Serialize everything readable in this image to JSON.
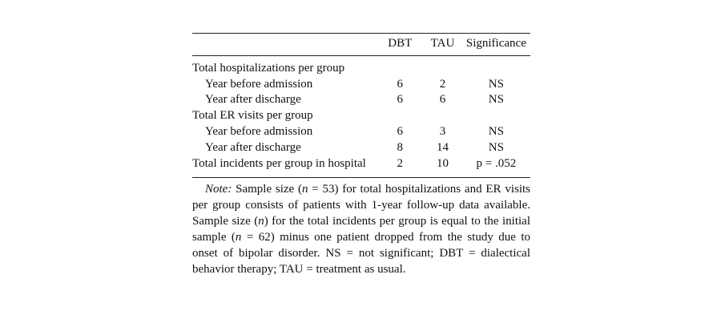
{
  "table": {
    "columns": [
      "DBT",
      "TAU",
      "Significance"
    ],
    "rows": [
      {
        "label": "Total hospitalizations per group"
      },
      {
        "label": "Year before admission",
        "dbt": 6,
        "tau": 2,
        "sig": "NS"
      },
      {
        "label": "Year after discharge",
        "dbt": 6,
        "tau": 6,
        "sig": "NS"
      },
      {
        "label": "Total ER visits per group"
      },
      {
        "label": "Year before admission",
        "dbt": 6,
        "tau": 3,
        "sig": "NS"
      },
      {
        "label": "Year after discharge",
        "dbt": 8,
        "tau": 14,
        "sig": "NS"
      },
      {
        "label": "Total incidents per group in hospital",
        "dbt": 2,
        "tau": 10,
        "sig": "p = .052"
      }
    ]
  },
  "note": {
    "parts": [
      "Note:",
      " Sample size (",
      "n",
      " = 53) for total hospitalizations and ER visits per group consists of patients with 1-year follow-up data available. Sample size (",
      "n",
      ") for the total incidents per group is equal to the initial sample (",
      "n",
      " = 62) minus one patient dropped from the study due to onset of bipolar disorder. NS = not significant; DBT = dialectical behavior therapy; TAU = treatment as usual."
    ]
  }
}
